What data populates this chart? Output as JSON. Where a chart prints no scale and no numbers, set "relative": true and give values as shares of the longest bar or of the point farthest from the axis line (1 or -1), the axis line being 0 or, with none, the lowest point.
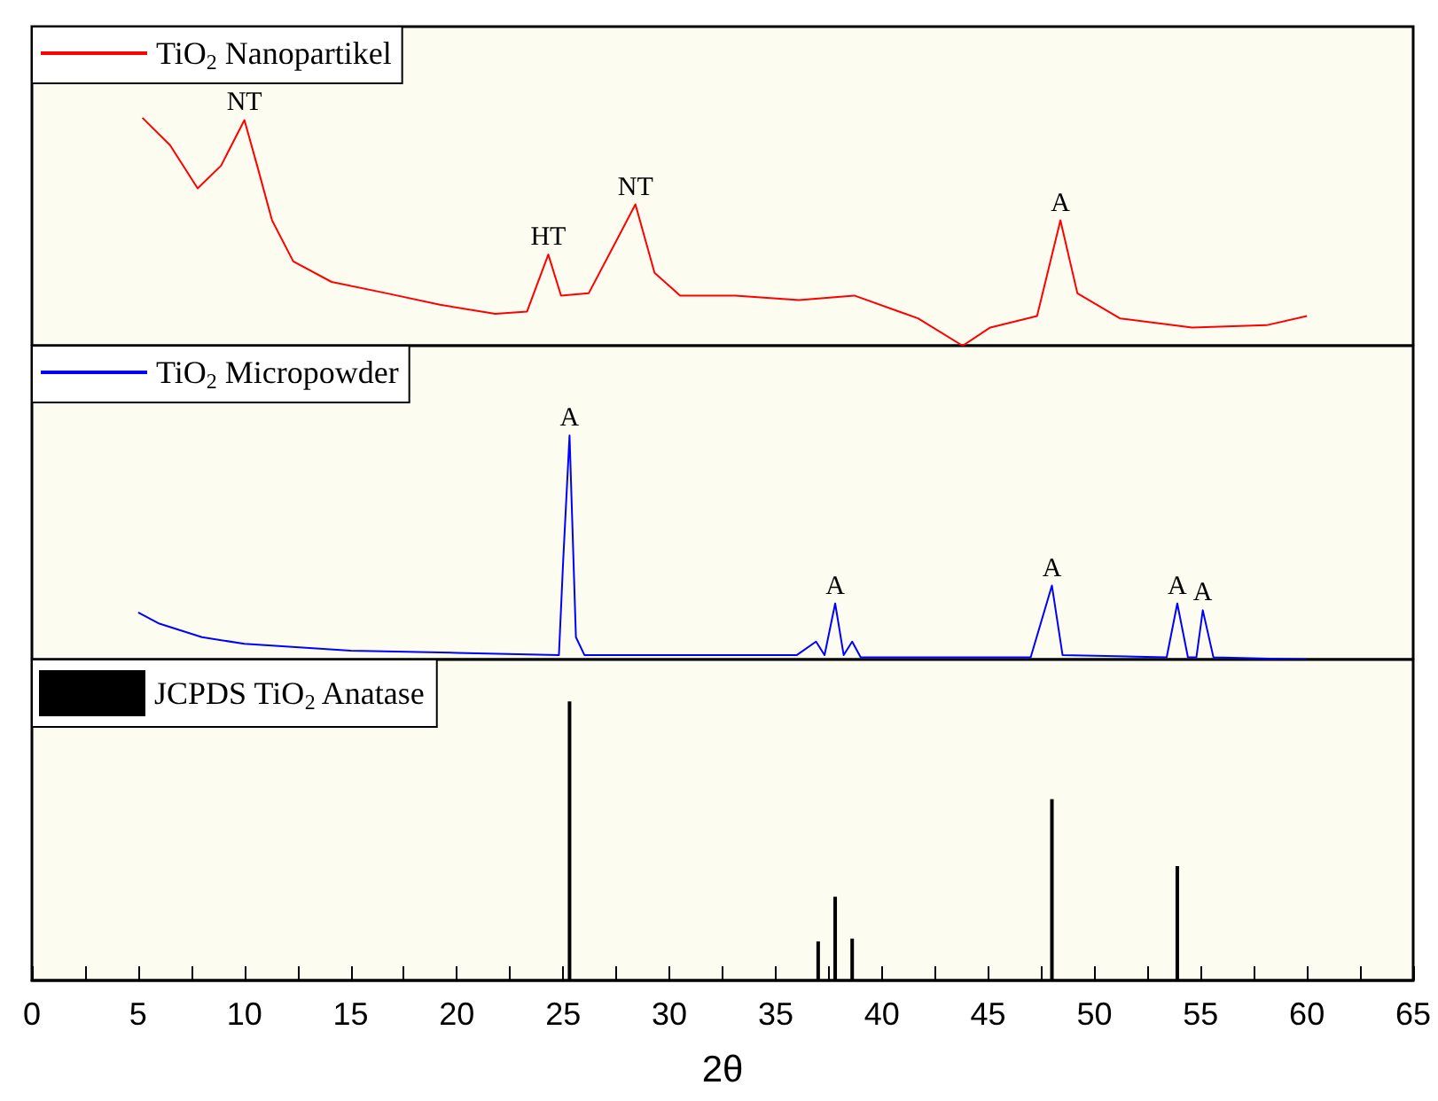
{
  "chart_data": [
    {
      "type": "line",
      "relative": true,
      "xlim": [
        0,
        65
      ],
      "tick_labels": false,
      "legend": "top left",
      "series": [
        {
          "name": "TiO$_{2}$ Nanopartikel",
          "color": "#ff0000",
          "x": [
            5.2,
            6.5,
            7.8,
            8.9,
            10.0,
            10.6,
            11.3,
            12.3,
            14.1,
            16.7,
            19.2,
            21.8,
            23.3,
            24.3,
            24.9,
            26.2,
            27.5,
            28.4,
            29.3,
            30.5,
            33.1,
            36.1,
            38.7,
            41.7,
            43.8,
            45.1,
            47.3,
            48.4,
            49.2,
            51.2,
            54.6,
            58.1,
            60.0
          ],
          "values": [
            1.0,
            0.88,
            0.69,
            0.79,
            0.99,
            0.79,
            0.55,
            0.37,
            0.28,
            0.23,
            0.18,
            0.14,
            0.15,
            0.4,
            0.22,
            0.23,
            0.46,
            0.62,
            0.32,
            0.22,
            0.22,
            0.2,
            0.22,
            0.12,
            0.0,
            0.08,
            0.13,
            0.55,
            0.23,
            0.12,
            0.08,
            0.09,
            0.13
          ]
        }
      ],
      "annotations": [
        {
          "text": "NT",
          "x": 10.0,
          "y": 0.99
        },
        {
          "text": "HT",
          "x": 24.3,
          "y": 0.4
        },
        {
          "text": "NT",
          "x": 28.4,
          "y": 0.62
        },
        {
          "text": "A",
          "x": 48.4,
          "y": 0.55
        }
      ]
    },
    {
      "type": "line",
      "relative": true,
      "xlim": [
        0,
        65
      ],
      "tick_labels": false,
      "legend": "top left",
      "series": [
        {
          "name": "TiO$_{2}$ Micropowder",
          "color": "#0000ff",
          "x": [
            5.0,
            6.0,
            8.0,
            10.0,
            15.0,
            20.0,
            24.8,
            25.0,
            25.3,
            25.6,
            26.0,
            30.0,
            36.0,
            36.9,
            37.3,
            37.8,
            38.2,
            38.6,
            39.0,
            47.0,
            48.0,
            48.5,
            53.4,
            53.9,
            54.4,
            54.8,
            55.1,
            55.6,
            60.0
          ],
          "values": [
            0.21,
            0.16,
            0.1,
            0.07,
            0.04,
            0.03,
            0.02,
            0.44,
            1.0,
            0.1,
            0.02,
            0.02,
            0.02,
            0.08,
            0.02,
            0.25,
            0.02,
            0.08,
            0.01,
            0.01,
            0.33,
            0.02,
            0.01,
            0.25,
            0.01,
            0.01,
            0.22,
            0.01,
            0.0
          ]
        }
      ],
      "annotations": [
        {
          "text": "A",
          "x": 25.3,
          "y": 1.0
        },
        {
          "text": "A",
          "x": 37.8,
          "y": 0.25
        },
        {
          "text": "A",
          "x": 48.0,
          "y": 0.33
        },
        {
          "text": "A",
          "x": 53.9,
          "y": 0.25
        },
        {
          "text": "A",
          "x": 55.1,
          "y": 0.22
        }
      ]
    },
    {
      "type": "bar",
      "relative": true,
      "xlim": [
        0,
        65
      ],
      "xlabel": "2θ",
      "legend": "top left",
      "tick_labels": "x",
      "xticks": [
        0,
        {
          "value": 2.5,
          "label": null
        },
        5,
        {
          "value": 7.5,
          "label": null
        },
        10,
        {
          "value": 12.5,
          "label": null
        },
        15,
        {
          "value": 17.5,
          "label": null
        },
        20,
        {
          "value": 22.5,
          "label": null
        },
        25,
        {
          "value": 27.5,
          "label": null
        },
        30,
        {
          "value": 32.5,
          "label": null
        },
        35,
        {
          "value": 37.5,
          "label": null
        },
        40,
        {
          "value": 42.5,
          "label": null
        },
        45,
        {
          "value": 47.5,
          "label": null
        },
        50,
        {
          "value": 52.5,
          "label": null
        },
        55,
        {
          "value": 57.5,
          "label": null
        },
        60,
        {
          "value": 62.5,
          "label": null
        },
        65
      ],
      "series": [
        {
          "name": "JCPDS TiO$_{2}$ Anatase",
          "color": "#000000",
          "x": [
            25.3,
            37.0,
            37.8,
            38.6,
            48.0,
            53.9
          ],
          "values": [
            1.0,
            0.14,
            0.3,
            0.15,
            0.65,
            0.41
          ]
        }
      ]
    }
  ]
}
